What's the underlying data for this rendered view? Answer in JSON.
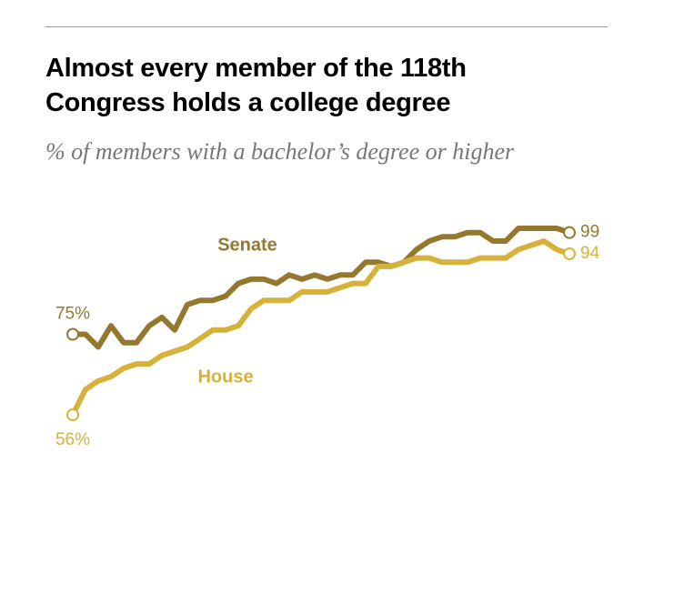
{
  "chart_data": {
    "type": "line",
    "title": "Almost every member of the 118th Congress holds a college degree",
    "subtitle": "% of members with a bachelor’s degree or higher",
    "categories": [
      null,
      null,
      null,
      null,
      null,
      null,
      null,
      null,
      null,
      null,
      null,
      null,
      null,
      null,
      null,
      null,
      null,
      null,
      null,
      null,
      null,
      null,
      null,
      null,
      null,
      null,
      null,
      null,
      null,
      null,
      null,
      null,
      null,
      null,
      null,
      null,
      null,
      null,
      null,
      null
    ],
    "ylim": [
      50,
      100
    ],
    "series": [
      {
        "name": "Senate",
        "color": "#94782e",
        "values": [
          75,
          75,
          72,
          77,
          73,
          73,
          77,
          79,
          76,
          82,
          83,
          83,
          84,
          87,
          88,
          88,
          87,
          89,
          88,
          89,
          88,
          89,
          89,
          92,
          92,
          91,
          92,
          95,
          97,
          98,
          98,
          99,
          99,
          97,
          97,
          100,
          100,
          100,
          100,
          99
        ],
        "value_labels": [
          "75%",
          null,
          null,
          null,
          null,
          null,
          null,
          null,
          null,
          null,
          null,
          null,
          null,
          null,
          null,
          null,
          null,
          null,
          null,
          null,
          null,
          null,
          null,
          null,
          null,
          null,
          null,
          null,
          null,
          null,
          null,
          null,
          null,
          null,
          null,
          null,
          null,
          null,
          null,
          "99"
        ]
      },
      {
        "name": "House",
        "color": "#d6b23a",
        "values": [
          56,
          62,
          64,
          65,
          67,
          68,
          68,
          70,
          71,
          72,
          74,
          76,
          76,
          77,
          81,
          83,
          83,
          83,
          85,
          85,
          85,
          86,
          87,
          87,
          91,
          91,
          92,
          93,
          93,
          92,
          92,
          92,
          93,
          93,
          93,
          95,
          96,
          97,
          95,
          94
        ],
        "value_labels": [
          "56%",
          null,
          null,
          null,
          null,
          null,
          null,
          null,
          null,
          null,
          null,
          null,
          null,
          null,
          null,
          null,
          null,
          null,
          null,
          null,
          null,
          null,
          null,
          null,
          null,
          null,
          null,
          null,
          null,
          null,
          null,
          null,
          null,
          null,
          null,
          null,
          null,
          null,
          null,
          "94"
        ]
      }
    ]
  }
}
